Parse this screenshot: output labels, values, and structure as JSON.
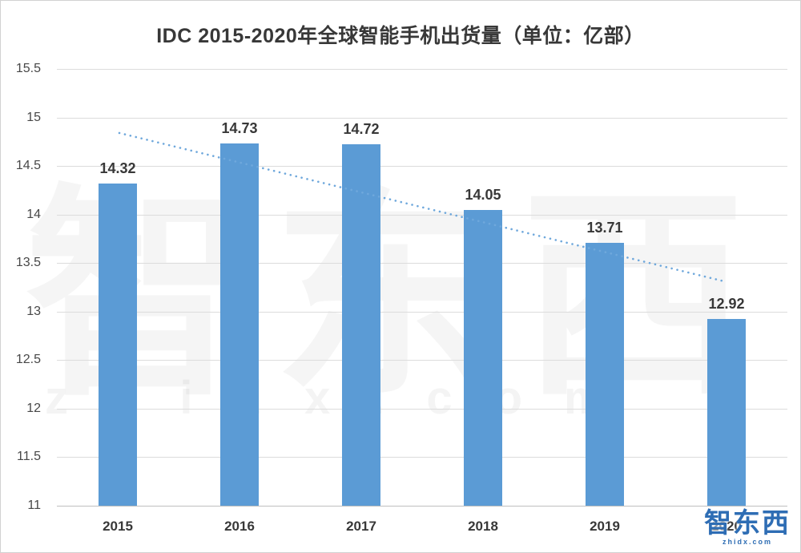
{
  "chart_data": {
    "type": "bar",
    "title": "IDC 2015-2020年全球智能手机出货量（单位：亿部）",
    "categories": [
      "2015",
      "2016",
      "2017",
      "2018",
      "2019",
      "2020"
    ],
    "values": [
      14.32,
      14.73,
      14.72,
      14.05,
      13.71,
      12.92
    ],
    "xlabel": "",
    "ylabel": "",
    "ylim": [
      11,
      15.5
    ],
    "yticks": [
      11,
      11.5,
      12,
      12.5,
      13,
      13.5,
      14,
      14.5,
      15,
      15.5
    ],
    "grid": true,
    "legend": "none",
    "bar_color": "#5B9BD5",
    "value_label_color": "#383838",
    "trendline": {
      "type": "linear",
      "style": "dotted",
      "color": "#6FA8DC",
      "y_start": 14.84,
      "y_end": 13.31
    }
  },
  "watermark": {
    "cn": "智东西",
    "en": "zhidx.com"
  },
  "logo": {
    "cn": "智东西",
    "en": "zhidx.com"
  }
}
